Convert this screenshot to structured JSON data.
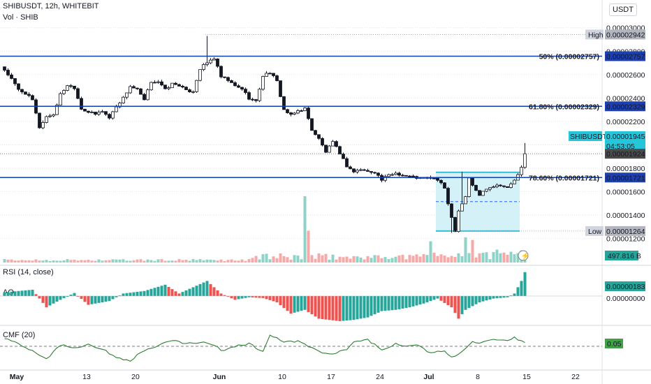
{
  "header": {
    "symbol_line": "SHIBUSDT, 12h, WHITEBIT",
    "volume_line": "Vol · SHIB",
    "currency": "USDT"
  },
  "colors": {
    "up": "#26a69a",
    "down": "#ef5350",
    "vol_up": "#8fd3c8",
    "vol_down": "#f7a9a7",
    "level_line": "#0d3fb8",
    "level_text": "#1848cc",
    "box_fill": "#c9eef5",
    "box_edge": "#2ec0d6",
    "tag_grey": "#9598a1",
    "rsi_line": "#2e7d32",
    "price_tag": "#26c6da"
  },
  "chart_data": [
    {
      "type": "candlestick",
      "title": "SHIBUSDT, 12h, WHITEBIT",
      "y_axis_ticks": [
        "0.00003000",
        "0.00002800",
        "0.00002600",
        "0.00002400",
        "0.00002200",
        "0.00002000",
        "0.00001800",
        "0.00001600",
        "0.00001400",
        "0.00001200"
      ],
      "ylim": [
        1.18e-05,
        3.04e-05
      ],
      "x_ticks": [
        {
          "label": "May",
          "bar": 4
        },
        {
          "label": "13",
          "bar": 24
        },
        {
          "label": "20",
          "bar": 38
        },
        {
          "label": "Jun",
          "bar": 62
        },
        {
          "label": "10",
          "bar": 80
        },
        {
          "label": "17",
          "bar": 94
        },
        {
          "label": "24",
          "bar": 108
        },
        {
          "label": "Jul",
          "bar": 122
        },
        {
          "label": "8",
          "bar": 136
        },
        {
          "label": "15",
          "bar": 150
        },
        {
          "label": "22",
          "bar": 164
        }
      ],
      "bars_count": 150,
      "close_anchors": [
        [
          0,
          2.64e-05
        ],
        [
          2,
          2.56e-05
        ],
        [
          4,
          2.47e-05
        ],
        [
          6,
          2.44e-05
        ],
        [
          8,
          2.38e-05
        ],
        [
          10,
          2.15e-05
        ],
        [
          12,
          2.24e-05
        ],
        [
          14,
          2.26e-05
        ],
        [
          16,
          2.43e-05
        ],
        [
          18,
          2.51e-05
        ],
        [
          20,
          2.49e-05
        ],
        [
          22,
          2.31e-05
        ],
        [
          24,
          2.28e-05
        ],
        [
          26,
          2.26e-05
        ],
        [
          28,
          2.29e-05
        ],
        [
          30,
          2.23e-05
        ],
        [
          32,
          2.33e-05
        ],
        [
          34,
          2.4e-05
        ],
        [
          36,
          2.5e-05
        ],
        [
          38,
          2.47e-05
        ],
        [
          40,
          2.38e-05
        ],
        [
          42,
          2.54e-05
        ],
        [
          44,
          2.54e-05
        ],
        [
          46,
          2.47e-05
        ],
        [
          48,
          2.52e-05
        ],
        [
          50,
          2.51e-05
        ],
        [
          52,
          2.46e-05
        ],
        [
          54,
          2.46e-05
        ],
        [
          56,
          2.65e-05
        ],
        [
          58,
          2.7e-05
        ],
        [
          60,
          2.74e-05
        ],
        [
          62,
          2.58e-05
        ],
        [
          64,
          2.55e-05
        ],
        [
          66,
          2.5e-05
        ],
        [
          68,
          2.48e-05
        ],
        [
          70,
          2.4e-05
        ],
        [
          72,
          2.37e-05
        ],
        [
          74,
          2.59e-05
        ],
        [
          76,
          2.62e-05
        ],
        [
          78,
          2.54e-05
        ],
        [
          80,
          2.3e-05
        ],
        [
          82,
          2.25e-05
        ],
        [
          84,
          2.29e-05
        ],
        [
          86,
          2.31e-05
        ],
        [
          88,
          2.13e-05
        ],
        [
          90,
          2.05e-05
        ],
        [
          92,
          1.94e-05
        ],
        [
          94,
          2.02e-05
        ],
        [
          96,
          1.93e-05
        ],
        [
          98,
          1.82e-05
        ],
        [
          100,
          1.77e-05
        ],
        [
          102,
          1.79e-05
        ],
        [
          104,
          1.77e-05
        ],
        [
          106,
          1.77e-05
        ],
        [
          108,
          1.7e-05
        ],
        [
          110,
          1.74e-05
        ],
        [
          112,
          1.76e-05
        ],
        [
          114,
          1.74e-05
        ],
        [
          116,
          1.73e-05
        ],
        [
          118,
          1.72e-05
        ],
        [
          120,
          1.71e-05
        ],
        [
          122,
          1.72e-05
        ],
        [
          124,
          1.7e-05
        ],
        [
          126,
          1.63e-05
        ],
        [
          128,
          1.38e-05
        ],
        [
          129,
          1.27e-05
        ],
        [
          130,
          1.44e-05
        ],
        [
          132,
          1.56e-05
        ],
        [
          133,
          1.72e-05
        ],
        [
          134,
          1.65e-05
        ],
        [
          136,
          1.57e-05
        ],
        [
          138,
          1.63e-05
        ],
        [
          140,
          1.65e-05
        ],
        [
          142,
          1.66e-05
        ],
        [
          144,
          1.63e-05
        ],
        [
          146,
          1.7e-05
        ],
        [
          147,
          1.74e-05
        ],
        [
          148,
          1.8e-05
        ],
        [
          149,
          1.924e-05
        ]
      ],
      "wick_spikes": [
        [
          58,
          2.93e-05
        ],
        [
          131,
          1.77e-05
        ],
        [
          149,
          2.015e-05
        ],
        [
          128,
          1.25e-05
        ]
      ],
      "levels": [
        {
          "label": "50% (0.00002757)",
          "value": 2.757e-05,
          "tag": "0.00002757"
        },
        {
          "label": "61.80% (0.00002329)",
          "value": 2.329e-05,
          "tag": "0.00002329"
        },
        {
          "label": "78.60% (0.00001721)",
          "value": 1.721e-05,
          "tag": "0.00001721"
        }
      ],
      "high": {
        "label": "High",
        "value": "0.00002942",
        "price": 2.942e-05
      },
      "low": {
        "label": "Low",
        "value": "0.00001264",
        "price": 1.264e-05
      },
      "current": {
        "symbol": "SHIBUSDT",
        "value": "0.00001945",
        "countdown": "04:53:05",
        "last": "0.00001924",
        "last_price": 1.924e-05
      },
      "range_box": {
        "from_bar": 124,
        "to_bar": 148,
        "top": 1.766e-05,
        "bottom": 1.264e-05,
        "mid": 1.515e-05
      },
      "volume_tag": "497.816 B",
      "volume_spikes": [
        [
          86,
          1.0
        ],
        [
          87,
          0.48
        ],
        [
          122,
          0.32
        ],
        [
          132,
          0.38
        ],
        [
          134,
          0.34
        ]
      ]
    },
    {
      "type": "bar",
      "title": "RSI (14, close)",
      "label": "AO",
      "y_ticks": [
        "0.00000183",
        "0.00000000"
      ],
      "value_tag": "0.00000183",
      "shape_note": "oscillator histogram",
      "anchors": [
        [
          0,
          0.15
        ],
        [
          8,
          0.25
        ],
        [
          12,
          -0.45
        ],
        [
          16,
          -0.15
        ],
        [
          20,
          0.12
        ],
        [
          24,
          -0.35
        ],
        [
          30,
          -0.2
        ],
        [
          34,
          0.1
        ],
        [
          40,
          0.2
        ],
        [
          46,
          0.45
        ],
        [
          50,
          0.1
        ],
        [
          54,
          0.35
        ],
        [
          58,
          0.6
        ],
        [
          62,
          0.1
        ],
        [
          66,
          -0.15
        ],
        [
          70,
          -0.05
        ],
        [
          74,
          -0.08
        ],
        [
          78,
          -0.25
        ],
        [
          82,
          -0.7
        ],
        [
          86,
          -0.55
        ],
        [
          90,
          -0.9
        ],
        [
          96,
          -1.0
        ],
        [
          100,
          -0.95
        ],
        [
          104,
          -0.85
        ],
        [
          108,
          -0.6
        ],
        [
          112,
          -0.55
        ],
        [
          116,
          -0.45
        ],
        [
          120,
          -0.3
        ],
        [
          124,
          -0.1
        ],
        [
          128,
          -0.45
        ],
        [
          130,
          -0.9
        ],
        [
          132,
          -0.55
        ],
        [
          136,
          -0.25
        ],
        [
          140,
          -0.1
        ],
        [
          144,
          -0.05
        ],
        [
          146,
          0.1
        ],
        [
          148,
          0.6
        ],
        [
          149,
          0.95
        ]
      ]
    },
    {
      "type": "line",
      "title": "CMF (20)",
      "label": "CMF (20)",
      "value_tag": "0.05",
      "anchors": [
        [
          0,
          0.6
        ],
        [
          4,
          0.2
        ],
        [
          8,
          -0.3
        ],
        [
          12,
          -0.9
        ],
        [
          16,
          0.1
        ],
        [
          20,
          -0.1
        ],
        [
          24,
          0.15
        ],
        [
          28,
          -0.2
        ],
        [
          32,
          -0.8
        ],
        [
          36,
          -1.0
        ],
        [
          40,
          -0.3
        ],
        [
          44,
          0.05
        ],
        [
          48,
          0.4
        ],
        [
          52,
          0.2
        ],
        [
          56,
          0.3
        ],
        [
          60,
          0.1
        ],
        [
          62,
          -0.3
        ],
        [
          66,
          0.0
        ],
        [
          70,
          0.2
        ],
        [
          74,
          -0.4
        ],
        [
          76,
          0.8
        ],
        [
          78,
          0.6
        ],
        [
          80,
          0.3
        ],
        [
          84,
          0.35
        ],
        [
          88,
          -0.1
        ],
        [
          90,
          -0.4
        ],
        [
          94,
          -0.6
        ],
        [
          98,
          -0.2
        ],
        [
          100,
          0.3
        ],
        [
          104,
          0.5
        ],
        [
          108,
          -0.3
        ],
        [
          112,
          0.2
        ],
        [
          116,
          0.0
        ],
        [
          118,
          0.1
        ],
        [
          122,
          -0.5
        ],
        [
          126,
          -0.3
        ],
        [
          128,
          -0.8
        ],
        [
          130,
          -0.6
        ],
        [
          134,
          0.4
        ],
        [
          136,
          0.2
        ],
        [
          140,
          0.45
        ],
        [
          144,
          0.35
        ],
        [
          146,
          0.6
        ],
        [
          148,
          0.4
        ],
        [
          149,
          0.25
        ]
      ]
    }
  ]
}
